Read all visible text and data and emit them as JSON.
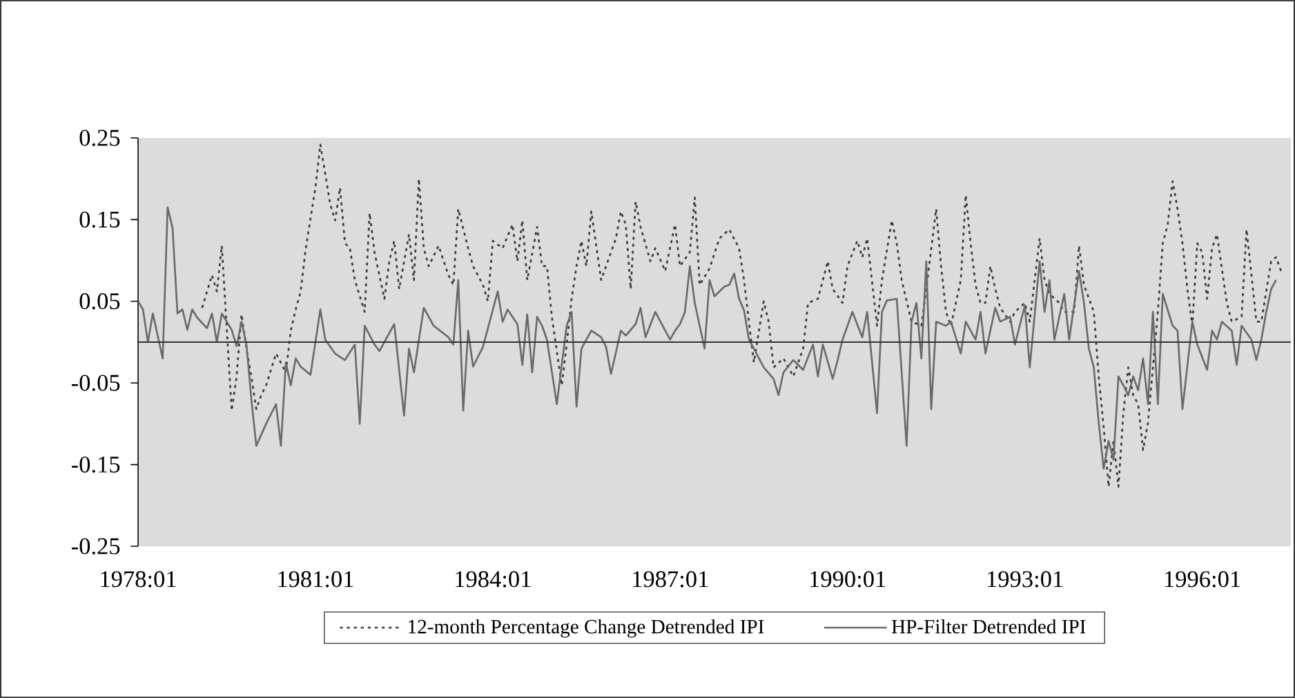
{
  "chart_data": {
    "type": "line",
    "xlim": [
      "1978-01",
      "1997-07"
    ],
    "ylim": [
      -0.25,
      0.25
    ],
    "xticks": [
      {
        "value": "1978-01",
        "label": "1978:01"
      },
      {
        "value": "1981-01",
        "label": "1981:01"
      },
      {
        "value": "1984-01",
        "label": "1984:01"
      },
      {
        "value": "1987-01",
        "label": "1987:01"
      },
      {
        "value": "1990-01",
        "label": "1990:01"
      },
      {
        "value": "1993-01",
        "label": "1993:01"
      },
      {
        "value": "1996-01",
        "label": "1996:01"
      }
    ],
    "yticks": [
      0.25,
      0.15,
      0.05,
      -0.05,
      -0.15,
      -0.25
    ],
    "grid": false,
    "legend": "bottom",
    "marker": "none",
    "ref_lines": [
      {
        "axis": "y",
        "value": 0,
        "color": "#333333"
      }
    ],
    "series": [
      {
        "name": "12-month Percentage Change Detrended IPI",
        "color": "#3a3a3a",
        "line_style": "dotted",
        "x": [
          "1979-02",
          "1979-04",
          "1979-05",
          "1979-06",
          "1979-08",
          "1979-09",
          "1979-10",
          "1979-11",
          "1979-12",
          "1980-01",
          "1980-02",
          "1980-03",
          "1980-05",
          "1980-07",
          "1980-08",
          "1980-09",
          "1980-10",
          "1980-11",
          "1981-01",
          "1981-02",
          "1981-03",
          "1981-04",
          "1981-05",
          "1981-06",
          "1981-07",
          "1981-08",
          "1981-09",
          "1981-11",
          "1981-12",
          "1982-01",
          "1982-03",
          "1982-04",
          "1982-05",
          "1982-06",
          "1982-08",
          "1982-09",
          "1982-10",
          "1982-11",
          "1982-12",
          "1983-02",
          "1983-04",
          "1983-05",
          "1983-06",
          "1983-08",
          "1983-09",
          "1983-11",
          "1983-12",
          "1984-01",
          "1984-03",
          "1984-05",
          "1984-06",
          "1984-07",
          "1984-08",
          "1984-10",
          "1984-11",
          "1984-12",
          "1985-01",
          "1985-03",
          "1985-04",
          "1985-05",
          "1985-06",
          "1985-07",
          "1985-08",
          "1985-09",
          "1985-11",
          "1985-12",
          "1986-02",
          "1986-03",
          "1986-04",
          "1986-05",
          "1986-06",
          "1986-07",
          "1986-09",
          "1986-10",
          "1986-12",
          "1987-02",
          "1987-03",
          "1987-05",
          "1987-06",
          "1987-07",
          "1987-09",
          "1987-11",
          "1988-01",
          "1988-03",
          "1988-04",
          "1988-05",
          "1988-06",
          "1988-08",
          "1988-09",
          "1988-10",
          "1988-12",
          "1989-02",
          "1989-04",
          "1989-05",
          "1989-07",
          "1989-09",
          "1989-10",
          "1989-12",
          "1990-01",
          "1990-03",
          "1990-04",
          "1990-05",
          "1990-07",
          "1990-08",
          "1990-10",
          "1990-11",
          "1990-12",
          "1991-02",
          "1991-04",
          "1991-05",
          "1991-07",
          "1991-08",
          "1991-09",
          "1991-10",
          "1991-12",
          "1992-01",
          "1992-02",
          "1992-03",
          "1992-04",
          "1992-05",
          "1992-06",
          "1992-07",
          "1992-08",
          "1992-10",
          "1992-11",
          "1993-01",
          "1993-02",
          "1993-04",
          "1993-05",
          "1993-06",
          "1993-08",
          "1993-09",
          "1993-11",
          "1993-12",
          "1994-01",
          "1994-03",
          "1994-04",
          "1994-05",
          "1994-06",
          "1994-07",
          "1994-08",
          "1994-09",
          "1994-10",
          "1994-11",
          "1994-12",
          "1995-01",
          "1995-02",
          "1995-03",
          "1995-04",
          "1995-05",
          "1995-06",
          "1995-07",
          "1995-08",
          "1995-09",
          "1995-10",
          "1995-11",
          "1995-12",
          "1996-01",
          "1996-02",
          "1996-03",
          "1996-04",
          "1996-06",
          "1996-07",
          "1996-09",
          "1996-10",
          "1996-11",
          "1996-12",
          "1997-01",
          "1997-03",
          "1997-04",
          "1997-05"
        ],
        "values": [
          0.042,
          0.082,
          0.062,
          0.118,
          -0.084,
          -0.042,
          0.034,
          -0.008,
          -0.042,
          -0.082,
          -0.065,
          -0.053,
          -0.014,
          -0.037,
          0.014,
          0.04,
          0.062,
          0.113,
          0.189,
          0.242,
          0.206,
          0.169,
          0.149,
          0.189,
          0.121,
          0.115,
          0.076,
          0.037,
          0.158,
          0.11,
          0.053,
          0.099,
          0.124,
          0.065,
          0.132,
          0.076,
          0.2,
          0.115,
          0.093,
          0.118,
          0.082,
          0.07,
          0.163,
          0.115,
          0.093,
          0.07,
          0.05,
          0.124,
          0.115,
          0.144,
          0.099,
          0.149,
          0.076,
          0.141,
          0.093,
          0.093,
          0.031,
          -0.053,
          -0.003,
          0.053,
          0.093,
          0.124,
          0.093,
          0.16,
          0.076,
          0.093,
          0.127,
          0.16,
          0.144,
          0.065,
          0.172,
          0.141,
          0.099,
          0.115,
          0.087,
          0.144,
          0.093,
          0.11,
          0.177,
          0.07,
          0.09,
          0.127,
          0.138,
          0.115,
          0.076,
          0.025,
          -0.025,
          0.05,
          0.025,
          -0.031,
          -0.02,
          -0.042,
          -0.008,
          0.048,
          0.053,
          0.099,
          0.065,
          0.048,
          0.093,
          0.124,
          0.104,
          0.127,
          0.02,
          0.076,
          0.149,
          0.121,
          0.076,
          0.025,
          0.02,
          0.065,
          0.163,
          0.093,
          0.037,
          0.02,
          0.076,
          0.18,
          0.121,
          0.07,
          0.048,
          0.048,
          0.093,
          0.065,
          0.042,
          0.025,
          0.037,
          0.048,
          0.025,
          0.127,
          0.076,
          0.059,
          0.048,
          0.037,
          0.037,
          0.118,
          0.07,
          0.037,
          -0.042,
          -0.104,
          -0.177,
          -0.121,
          -0.177,
          -0.087,
          -0.031,
          -0.065,
          -0.076,
          -0.132,
          -0.099,
          -0.031,
          0.037,
          0.121,
          0.144,
          0.197,
          0.163,
          0.121,
          0.065,
          0.02,
          0.121,
          0.11,
          0.053,
          0.115,
          0.132,
          0.048,
          0.025,
          0.031,
          0.138,
          0.082,
          0.025,
          0.025,
          0.099,
          0.104,
          0.087
        ]
      },
      {
        "name": "HP-Filter Detrended IPI",
        "color": "#6a6a6a",
        "line_style": "solid",
        "x": [
          "1978-01",
          "1978-02",
          "1978-03",
          "1978-04",
          "1978-06",
          "1978-07",
          "1978-08",
          "1978-09",
          "1978-10",
          "1978-11",
          "1978-12",
          "1979-01",
          "1979-03",
          "1979-04",
          "1979-05",
          "1979-06",
          "1979-08",
          "1979-09",
          "1979-10",
          "1979-11",
          "1979-12",
          "1980-01",
          "1980-03",
          "1980-05",
          "1980-06",
          "1980-07",
          "1980-08",
          "1980-09",
          "1980-10",
          "1980-12",
          "1981-02",
          "1981-03",
          "1981-05",
          "1981-07",
          "1981-09",
          "1981-10",
          "1981-11",
          "1982-01",
          "1982-02",
          "1982-04",
          "1982-05",
          "1982-07",
          "1982-08",
          "1982-09",
          "1982-11",
          "1983-01",
          "1983-04",
          "1983-05",
          "1983-06",
          "1983-07",
          "1983-08",
          "1983-09",
          "1983-11",
          "1984-02",
          "1984-03",
          "1984-04",
          "1984-06",
          "1984-07",
          "1984-08",
          "1984-09",
          "1984-10",
          "1984-11",
          "1984-12",
          "1985-02",
          "1985-04",
          "1985-05",
          "1985-06",
          "1985-07",
          "1985-09",
          "1985-11",
          "1985-12",
          "1986-01",
          "1986-03",
          "1986-04",
          "1986-06",
          "1986-07",
          "1986-08",
          "1986-10",
          "1986-12",
          "1987-01",
          "1987-02",
          "1987-03",
          "1987-04",
          "1987-05",
          "1987-06",
          "1987-08",
          "1987-09",
          "1987-10",
          "1987-12",
          "1988-01",
          "1988-02",
          "1988-03",
          "1988-04",
          "1988-05",
          "1988-06",
          "1988-08",
          "1988-10",
          "1988-11",
          "1988-12",
          "1989-02",
          "1989-04",
          "1989-06",
          "1989-07",
          "1989-08",
          "1989-10",
          "1989-11",
          "1989-12",
          "1990-02",
          "1990-04",
          "1990-05",
          "1990-07",
          "1990-08",
          "1990-09",
          "1990-11",
          "1991-01",
          "1991-02",
          "1991-03",
          "1991-04",
          "1991-05",
          "1991-06",
          "1991-07",
          "1991-09",
          "1991-10",
          "1991-12",
          "1992-01",
          "1992-03",
          "1992-04",
          "1992-05",
          "1992-07",
          "1992-08",
          "1992-10",
          "1992-11",
          "1993-01",
          "1993-02",
          "1993-04",
          "1993-05",
          "1993-06",
          "1993-07",
          "1993-09",
          "1993-10",
          "1993-12",
          "1994-01",
          "1994-02",
          "1994-03",
          "1994-04",
          "1994-05",
          "1994-06",
          "1994-07",
          "1994-08",
          "1994-09",
          "1994-10",
          "1994-11",
          "1994-12",
          "1995-01",
          "1995-02",
          "1995-03",
          "1995-04",
          "1995-05",
          "1995-07",
          "1995-08",
          "1995-09",
          "1995-11",
          "1995-12",
          "1996-02",
          "1996-03",
          "1996-04",
          "1996-05",
          "1996-07",
          "1996-08",
          "1996-09",
          "1996-11",
          "1996-12",
          "1997-01",
          "1997-02",
          "1997-03",
          "1997-04"
        ],
        "values": [
          0.05,
          0.04,
          0.0,
          0.035,
          -0.02,
          0.165,
          0.14,
          0.035,
          0.04,
          0.015,
          0.04,
          0.03,
          0.017,
          0.035,
          0.0,
          0.035,
          0.015,
          -0.005,
          0.025,
          -0.003,
          -0.07,
          -0.127,
          -0.1,
          -0.076,
          -0.127,
          -0.025,
          -0.053,
          -0.02,
          -0.03,
          -0.04,
          0.04,
          0.003,
          -0.014,
          -0.022,
          -0.003,
          -0.1,
          0.02,
          -0.003,
          -0.011,
          0.011,
          0.022,
          -0.09,
          -0.008,
          -0.037,
          0.042,
          0.02,
          0.006,
          -0.003,
          0.076,
          -0.084,
          0.014,
          -0.03,
          -0.006,
          0.062,
          0.025,
          0.04,
          0.022,
          -0.028,
          0.034,
          -0.037,
          0.031,
          0.02,
          0.003,
          -0.076,
          0.02,
          0.037,
          -0.079,
          -0.008,
          0.014,
          0.006,
          -0.006,
          -0.039,
          0.014,
          0.008,
          0.022,
          0.042,
          0.006,
          0.037,
          0.014,
          0.003,
          0.014,
          0.022,
          0.037,
          0.093,
          0.048,
          -0.008,
          0.076,
          0.056,
          0.068,
          0.07,
          0.084,
          0.053,
          0.039,
          0.003,
          -0.008,
          -0.031,
          -0.045,
          -0.065,
          -0.037,
          -0.022,
          -0.034,
          -0.003,
          -0.042,
          -0.003,
          -0.045,
          -0.022,
          0.003,
          0.037,
          0.006,
          0.037,
          -0.087,
          0.037,
          0.051,
          0.053,
          -0.127,
          0.025,
          0.048,
          -0.02,
          0.099,
          -0.082,
          0.025,
          0.02,
          0.025,
          -0.014,
          0.025,
          0.003,
          0.037,
          -0.014,
          0.042,
          0.025,
          0.031,
          -0.003,
          0.045,
          -0.031,
          0.099,
          0.037,
          0.076,
          0.003,
          0.059,
          0.003,
          0.087,
          0.048,
          -0.008,
          -0.031,
          -0.099,
          -0.155,
          -0.121,
          -0.144,
          -0.042,
          -0.053,
          -0.065,
          -0.042,
          -0.059,
          -0.02,
          -0.076,
          0.037,
          -0.076,
          0.059,
          0.02,
          0.014,
          -0.082,
          0.025,
          -0.003,
          -0.034,
          0.014,
          0.003,
          0.025,
          0.014,
          -0.028,
          0.02,
          0.003,
          -0.022,
          0.003,
          0.037,
          0.065,
          0.076
        ]
      }
    ]
  }
}
